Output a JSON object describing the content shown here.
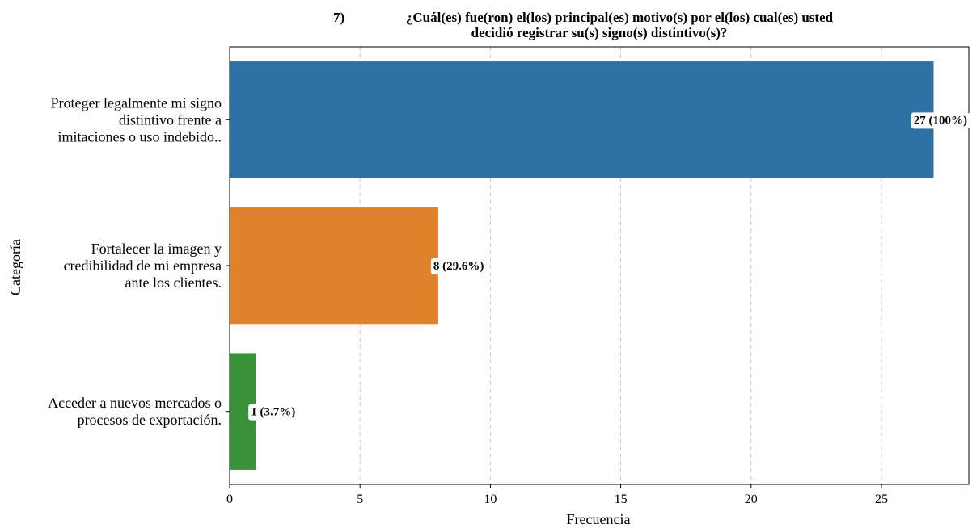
{
  "chart_data": {
    "type": "bar",
    "orientation": "horizontal",
    "title_number": "7)",
    "title_lines": [
      "¿Cuál(es) fue(ron) el(los) principal(es) motivo(s) por el(los) cual(es) usted",
      "decidió registrar su(s) signo(s) distintivo(s)?"
    ],
    "xlabel": "Frecuencia",
    "ylabel": "Categoría",
    "xlim": [
      0,
      28.35
    ],
    "xticks": [
      0,
      5,
      10,
      15,
      20,
      25
    ],
    "grid": "vertical-dashed",
    "categories": [
      {
        "lines": [
          "Proteger legalmente mi signo",
          "distintivo frente a",
          "imitaciones o uso indebido.."
        ],
        "value": 27,
        "label": "27 (100%)",
        "color": "#2e72a3"
      },
      {
        "lines": [
          "Fortalecer la imagen y",
          "credibilidad de mi empresa",
          "ante los clientes."
        ],
        "value": 8,
        "label": "8 (29.6%)",
        "color": "#e0812c"
      },
      {
        "lines": [
          "Acceder a nuevos mercados o",
          "procesos de exportación."
        ],
        "value": 1,
        "label": "1 (3.7%)",
        "color": "#3b913a"
      }
    ]
  }
}
